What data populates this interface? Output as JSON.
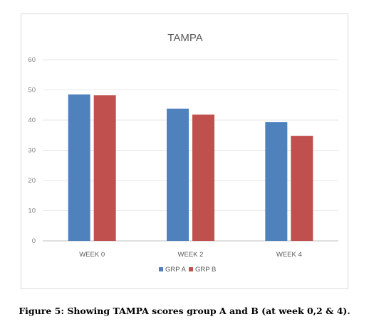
{
  "chart_data": {
    "type": "bar",
    "title": "TAMPA",
    "categories": [
      "WEEK 0",
      "WEEK 2",
      "WEEK 4"
    ],
    "series": [
      {
        "name": "GRP A",
        "values": [
          48.5,
          43.8,
          39.3
        ],
        "color": "#4f81bd"
      },
      {
        "name": "GRP B",
        "values": [
          48.2,
          41.8,
          34.8
        ],
        "color": "#c0504d"
      }
    ],
    "ylim": [
      0,
      60
    ],
    "yticks": [
      0,
      10,
      20,
      30,
      40,
      50,
      60
    ],
    "grid": true,
    "legend": "bottom"
  },
  "caption": "Figure 5: Showing TAMPA scores group A and B (at week 0,2 & 4)."
}
